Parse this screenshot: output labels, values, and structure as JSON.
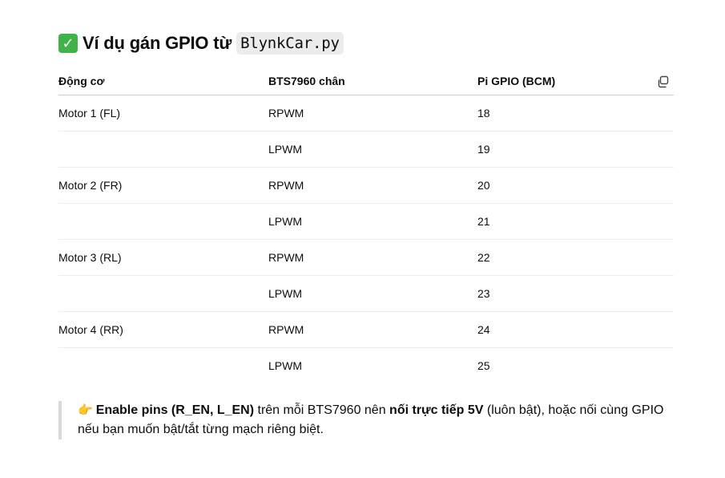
{
  "heading": {
    "check_icon": "✓",
    "text": "Ví dụ gán GPIO từ",
    "code": "BlynkCar.py"
  },
  "table": {
    "headers": [
      "Động cơ",
      "BTS7960 chân",
      "Pi GPIO (BCM)"
    ],
    "rows": [
      [
        "Motor 1 (FL)",
        "RPWM",
        "18"
      ],
      [
        "",
        "LPWM",
        "19"
      ],
      [
        "Motor 2 (FR)",
        "RPWM",
        "20"
      ],
      [
        "",
        "LPWM",
        "21"
      ],
      [
        "Motor 3 (RL)",
        "RPWM",
        "22"
      ],
      [
        "",
        "LPWM",
        "23"
      ],
      [
        "Motor 4 (RR)",
        "RPWM",
        "24"
      ],
      [
        "",
        "LPWM",
        "25"
      ]
    ]
  },
  "note": {
    "icon": "👉",
    "bold1": "Enable pins (R_EN, L_EN)",
    "text1": " trên mỗi BTS7960 nên ",
    "bold2": "nối trực tiếp 5V",
    "text2": " (luôn bật), hoặc nối cùng GPIO nếu bạn muốn bật/tắt từng mạch riêng biệt."
  },
  "colors": {
    "check_green": "#3fb24a",
    "code_bg": "#ececec",
    "blockquote_border": "#d9d9d9"
  }
}
